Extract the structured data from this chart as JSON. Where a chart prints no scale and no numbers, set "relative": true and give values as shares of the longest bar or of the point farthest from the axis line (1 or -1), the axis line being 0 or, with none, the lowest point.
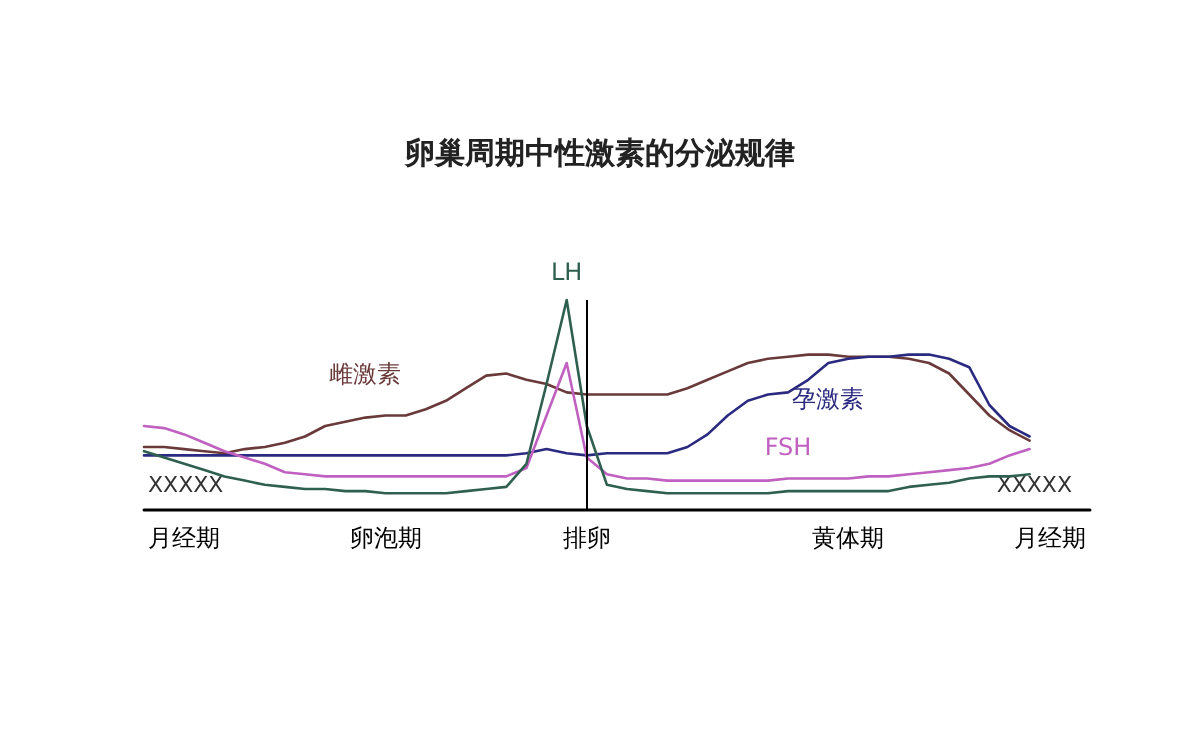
{
  "chart_data": {
    "type": "line",
    "title": "卵巢周期中性激素的分泌规律",
    "relative": true,
    "marker": "none",
    "line_style": "solid",
    "categories": [
      null,
      null,
      "月经期",
      null,
      null,
      null,
      null,
      null,
      null,
      null,
      null,
      null,
      "卵泡期",
      null,
      null,
      null,
      null,
      null,
      null,
      null,
      null,
      null,
      "排卵",
      null,
      null,
      null,
      null,
      null,
      null,
      null,
      null,
      null,
      null,
      null,
      null,
      "黄体期",
      null,
      null,
      null,
      null,
      null,
      null,
      null,
      null,
      null,
      "月经期",
      null,
      null
    ],
    "series": [
      {
        "name": "雌激素",
        "color": "#6a3a3a",
        "values": [
          0.3,
          0.3,
          0.29,
          0.28,
          0.27,
          0.29,
          0.3,
          0.32,
          0.35,
          0.4,
          0.42,
          0.44,
          0.45,
          0.45,
          0.48,
          0.52,
          0.58,
          0.64,
          0.65,
          0.62,
          0.6,
          0.56,
          0.55,
          0.55,
          0.55,
          0.55,
          0.55,
          0.58,
          0.62,
          0.66,
          0.7,
          0.72,
          0.73,
          0.74,
          0.74,
          0.73,
          0.73,
          0.73,
          0.72,
          0.7,
          0.65,
          0.55,
          0.45,
          0.38,
          0.33,
          null,
          null,
          null
        ]
      },
      {
        "name": "孕激素",
        "color": "#2a2a80",
        "values": [
          0.26,
          0.26,
          0.26,
          0.26,
          0.26,
          0.26,
          0.26,
          0.26,
          0.26,
          0.26,
          0.26,
          0.26,
          0.26,
          0.26,
          0.26,
          0.26,
          0.26,
          0.26,
          0.26,
          0.27,
          0.29,
          0.27,
          0.26,
          0.27,
          0.27,
          0.27,
          0.27,
          0.3,
          0.36,
          0.45,
          0.52,
          0.55,
          0.56,
          0.62,
          0.7,
          0.72,
          0.73,
          0.73,
          0.74,
          0.74,
          0.72,
          0.68,
          0.5,
          0.4,
          0.35,
          null,
          null,
          null
        ]
      },
      {
        "name": "FSH",
        "color": "#c060c0",
        "values": [
          0.4,
          0.39,
          0.36,
          0.32,
          0.28,
          0.25,
          0.22,
          0.18,
          0.17,
          0.16,
          0.16,
          0.16,
          0.16,
          0.16,
          0.16,
          0.16,
          0.16,
          0.16,
          0.16,
          0.2,
          0.45,
          0.7,
          0.25,
          0.17,
          0.15,
          0.15,
          0.14,
          0.14,
          0.14,
          0.14,
          0.14,
          0.14,
          0.15,
          0.15,
          0.15,
          0.15,
          0.16,
          0.16,
          0.17,
          0.18,
          0.19,
          0.2,
          0.22,
          0.26,
          0.29,
          null,
          null,
          null
        ]
      },
      {
        "name": "LH",
        "color": "#2f5f50",
        "values": [
          0.28,
          0.25,
          0.22,
          0.19,
          0.16,
          0.14,
          0.12,
          0.11,
          0.1,
          0.1,
          0.09,
          0.09,
          0.08,
          0.08,
          0.08,
          0.08,
          0.09,
          0.1,
          0.11,
          0.22,
          0.6,
          1.0,
          0.4,
          0.12,
          0.1,
          0.09,
          0.08,
          0.08,
          0.08,
          0.08,
          0.08,
          0.08,
          0.09,
          0.09,
          0.09,
          0.09,
          0.09,
          0.09,
          0.11,
          0.12,
          0.13,
          0.15,
          0.16,
          0.16,
          0.17,
          null,
          null,
          null
        ]
      }
    ],
    "ref_lines": [
      {
        "axis": "x",
        "value": "排卵"
      }
    ],
    "annotations": [
      "XXXXX",
      "XXXXX"
    ]
  }
}
